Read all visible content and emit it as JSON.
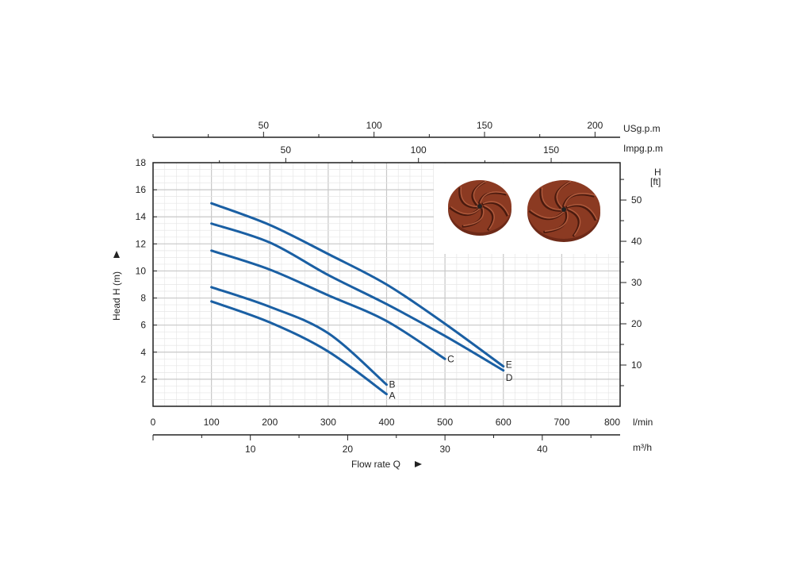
{
  "chart_data": {
    "type": "line",
    "x_axis": {
      "label": "Flow rate Q",
      "unit": "l/min",
      "range": [
        0,
        800
      ],
      "ticks": [
        0,
        100,
        200,
        300,
        400,
        500,
        600,
        700,
        800
      ]
    },
    "x_axis_m3h": {
      "unit": "m³/h",
      "ticks": [
        10,
        20,
        30,
        40
      ]
    },
    "x_axis_usgpm": {
      "unit": "USg.p.m",
      "ticks": [
        50,
        100,
        150,
        200
      ]
    },
    "x_axis_impgpm": {
      "unit": "Impg.p.m",
      "ticks": [
        50,
        100,
        150
      ]
    },
    "y_axis": {
      "label": "Head H (m)",
      "range": [
        0,
        18
      ],
      "ticks": [
        2,
        4,
        6,
        8,
        10,
        12,
        14,
        16,
        18
      ]
    },
    "y_axis_right": {
      "label_top": "H",
      "label_unit": "[ft]",
      "ticks": [
        10,
        20,
        30,
        40,
        50
      ]
    },
    "grid": true,
    "series": [
      {
        "name": "A",
        "x": [
          100,
          200,
          300,
          400
        ],
        "y": [
          7.75,
          6.2,
          4.05,
          0.9
        ]
      },
      {
        "name": "B",
        "x": [
          100,
          200,
          300,
          400
        ],
        "y": [
          8.8,
          7.35,
          5.4,
          1.6
        ]
      },
      {
        "name": "C",
        "x": [
          100,
          200,
          300,
          400,
          500
        ],
        "y": [
          11.5,
          10.1,
          8.2,
          6.3,
          3.5
        ]
      },
      {
        "name": "D",
        "x": [
          100,
          200,
          300,
          400,
          500,
          600
        ],
        "y": [
          13.5,
          12.1,
          9.7,
          7.55,
          5.2,
          2.65
        ]
      },
      {
        "name": "E",
        "x": [
          100,
          200,
          300,
          400,
          500,
          600
        ],
        "y": [
          15.0,
          13.4,
          11.25,
          9.0,
          6.1,
          2.95
        ]
      }
    ],
    "line_color": "#1a5fa3",
    "impeller_color": "#8b3a22"
  }
}
